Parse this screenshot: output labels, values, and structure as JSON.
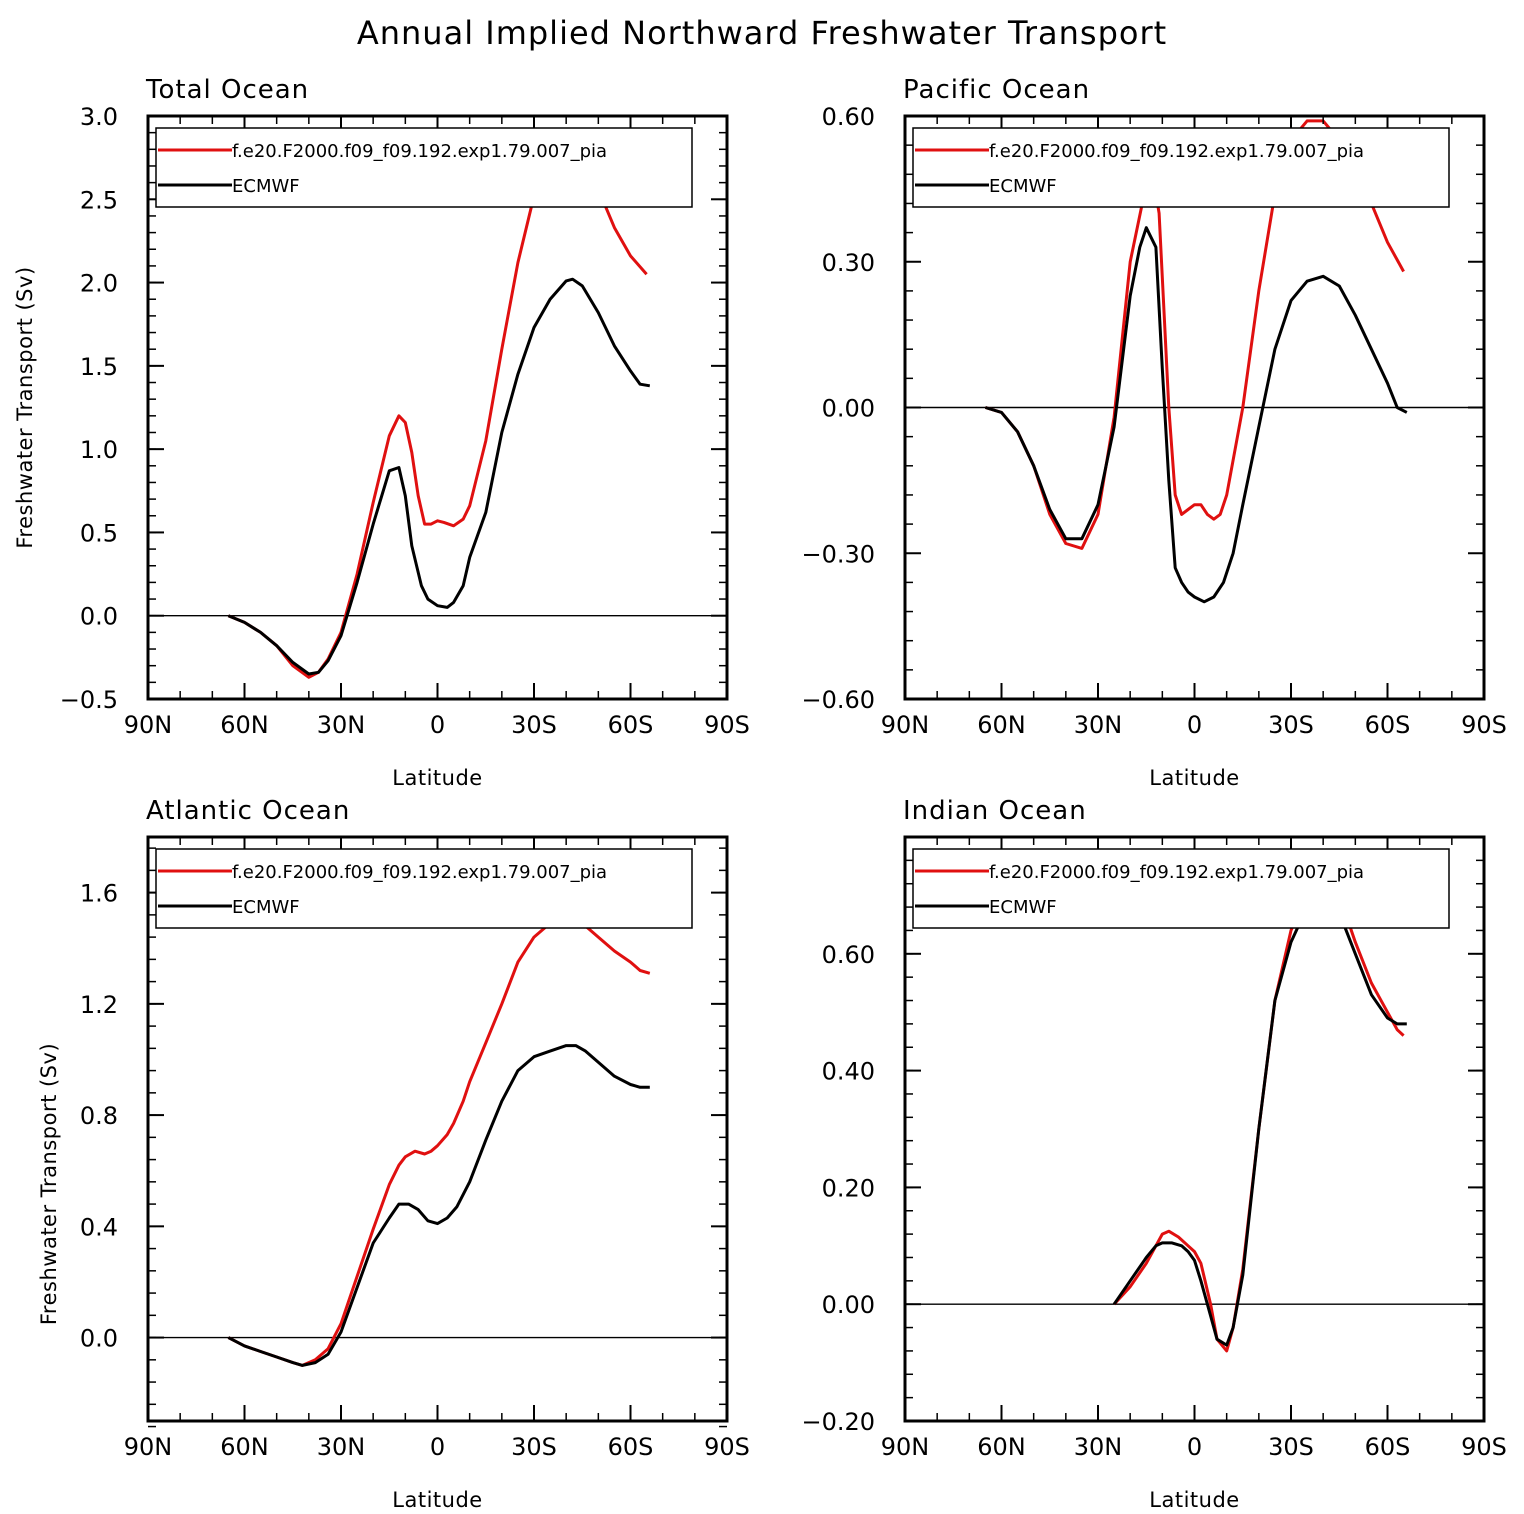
{
  "figure": {
    "title": "Annual Implied Northward Freshwater Transport"
  },
  "colors": {
    "model": "#e01010",
    "obs": "#000000"
  },
  "chart_data": [
    {
      "type": "line",
      "title": "Total Ocean",
      "xlabel": "Latitude",
      "ylabel": "Freshwater Transport (Sv)",
      "xlim": [
        90,
        -90
      ],
      "ylim": [
        -0.5,
        3.0
      ],
      "xticks": [
        90,
        60,
        30,
        0,
        -30,
        -60,
        -90
      ],
      "xtick_labels": [
        "90N",
        "60N",
        "30N",
        "0",
        "30S",
        "60S",
        "90S"
      ],
      "yticks": [
        -0.5,
        0.0,
        0.5,
        1.0,
        1.5,
        2.0,
        2.5,
        3.0
      ],
      "ytick_labels": [
        "−0.5",
        "0.0",
        "0.5",
        "1.0",
        "1.5",
        "2.0",
        "2.5",
        "3.0"
      ],
      "zero_line": true,
      "legend_position": "top",
      "series": [
        {
          "name": "f.e20.F2000.f09_f09.192.exp1.79.007_pia",
          "color": "#e01010",
          "x": [
            65,
            60,
            55,
            50,
            45,
            40,
            37,
            34,
            30,
            25,
            20,
            15,
            12,
            10,
            8,
            6,
            4,
            2,
            0,
            -2,
            -5,
            -8,
            -10,
            -15,
            -20,
            -25,
            -30,
            -35,
            -40,
            -45,
            -50,
            -55,
            -60,
            -65
          ],
          "y": [
            0.0,
            -0.04,
            -0.1,
            -0.18,
            -0.3,
            -0.37,
            -0.34,
            -0.26,
            -0.1,
            0.25,
            0.68,
            1.08,
            1.2,
            1.16,
            0.98,
            0.72,
            0.55,
            0.55,
            0.57,
            0.56,
            0.54,
            0.58,
            0.66,
            1.05,
            1.6,
            2.12,
            2.52,
            2.74,
            2.84,
            2.76,
            2.56,
            2.33,
            2.16,
            2.05
          ]
        },
        {
          "name": "ECMWF",
          "color": "#000000",
          "x": [
            65,
            60,
            55,
            50,
            45,
            40,
            37,
            34,
            30,
            25,
            20,
            15,
            12,
            10,
            8,
            5,
            3,
            0,
            -3,
            -5,
            -8,
            -10,
            -15,
            -20,
            -25,
            -30,
            -35,
            -40,
            -42,
            -45,
            -50,
            -55,
            -60,
            -63,
            -66
          ],
          "y": [
            0.0,
            -0.04,
            -0.1,
            -0.18,
            -0.28,
            -0.35,
            -0.34,
            -0.27,
            -0.12,
            0.2,
            0.55,
            0.87,
            0.89,
            0.72,
            0.42,
            0.18,
            0.1,
            0.06,
            0.05,
            0.08,
            0.18,
            0.35,
            0.62,
            1.1,
            1.45,
            1.73,
            1.9,
            2.01,
            2.02,
            1.98,
            1.82,
            1.62,
            1.47,
            1.39,
            1.38
          ]
        }
      ]
    },
    {
      "type": "line",
      "title": "Pacific Ocean",
      "xlabel": "Latitude",
      "ylabel": "",
      "xlim": [
        90,
        -90
      ],
      "ylim": [
        -0.6,
        0.6
      ],
      "xticks": [
        90,
        60,
        30,
        0,
        -30,
        -60,
        -90
      ],
      "xtick_labels": [
        "90N",
        "60N",
        "30N",
        "0",
        "30S",
        "60S",
        "90S"
      ],
      "yticks": [
        -0.6,
        -0.3,
        0.0,
        0.3,
        0.6
      ],
      "ytick_labels": [
        "−0.60",
        "−0.30",
        "0.00",
        "0.30",
        "0.60"
      ],
      "zero_line": true,
      "legend_position": "top",
      "series": [
        {
          "name": "f.e20.F2000.f09_f09.192.exp1.79.007_pia",
          "color": "#e01010",
          "x": [
            65,
            60,
            55,
            50,
            45,
            40,
            35,
            30,
            25,
            20,
            15,
            13,
            11,
            8,
            6,
            4,
            2,
            0,
            -2,
            -4,
            -6,
            -8,
            -10,
            -15,
            -20,
            -25,
            -30,
            -35,
            -40,
            -45,
            -50,
            -55,
            -60,
            -65
          ],
          "y": [
            0.0,
            -0.01,
            -0.05,
            -0.12,
            -0.22,
            -0.28,
            -0.29,
            -0.22,
            -0.02,
            0.3,
            0.46,
            0.48,
            0.4,
            0.0,
            -0.18,
            -0.22,
            -0.21,
            -0.2,
            -0.2,
            -0.22,
            -0.23,
            -0.22,
            -0.18,
            0.0,
            0.24,
            0.44,
            0.55,
            0.59,
            0.59,
            0.55,
            0.5,
            0.42,
            0.34,
            0.28
          ]
        },
        {
          "name": "ECMWF",
          "color": "#000000",
          "x": [
            65,
            60,
            55,
            50,
            45,
            40,
            35,
            30,
            25,
            20,
            17,
            15,
            12,
            10,
            8,
            6,
            4,
            2,
            0,
            -3,
            -6,
            -9,
            -12,
            -15,
            -20,
            -25,
            -30,
            -35,
            -40,
            -45,
            -50,
            -55,
            -60,
            -63,
            -66
          ],
          "y": [
            0.0,
            -0.01,
            -0.05,
            -0.12,
            -0.21,
            -0.27,
            -0.27,
            -0.2,
            -0.04,
            0.23,
            0.33,
            0.37,
            0.33,
            0.08,
            -0.15,
            -0.33,
            -0.36,
            -0.38,
            -0.39,
            -0.4,
            -0.39,
            -0.36,
            -0.3,
            -0.2,
            -0.04,
            0.12,
            0.22,
            0.26,
            0.27,
            0.25,
            0.19,
            0.12,
            0.05,
            0.0,
            -0.01
          ]
        }
      ]
    },
    {
      "type": "line",
      "title": "Atlantic Ocean",
      "xlabel": "Latitude",
      "ylabel": "Freshwater Transport (Sv)",
      "xlim": [
        90,
        -90
      ],
      "ylim": [
        -0.3,
        1.8
      ],
      "xticks": [
        90,
        60,
        30,
        0,
        -30,
        -60,
        -90
      ],
      "xtick_labels": [
        "90N",
        "60N",
        "30N",
        "0",
        "30S",
        "60S",
        "90S"
      ],
      "yticks": [
        0.0,
        0.4,
        0.8,
        1.2,
        1.6
      ],
      "ytick_labels": [
        "0.0",
        "0.4",
        "0.8",
        "1.2",
        "1.6"
      ],
      "zero_line": true,
      "legend_position": "top",
      "series": [
        {
          "name": "f.e20.F2000.f09_f09.192.exp1.79.007_pia",
          "color": "#e01010",
          "x": [
            65,
            60,
            55,
            50,
            45,
            42,
            38,
            34,
            30,
            25,
            20,
            15,
            12,
            10,
            7,
            4,
            2,
            0,
            -3,
            -5,
            -8,
            -10,
            -15,
            -20,
            -25,
            -30,
            -35,
            -40,
            -42,
            -45,
            -50,
            -55,
            -60,
            -63,
            -66
          ],
          "y": [
            0.0,
            -0.03,
            -0.05,
            -0.07,
            -0.09,
            -0.1,
            -0.08,
            -0.04,
            0.05,
            0.22,
            0.39,
            0.55,
            0.62,
            0.65,
            0.67,
            0.66,
            0.67,
            0.69,
            0.73,
            0.77,
            0.85,
            0.92,
            1.06,
            1.2,
            1.35,
            1.44,
            1.49,
            1.51,
            1.51,
            1.49,
            1.44,
            1.39,
            1.35,
            1.32,
            1.31
          ]
        },
        {
          "name": "ECMWF",
          "color": "#000000",
          "x": [
            65,
            60,
            55,
            50,
            45,
            42,
            38,
            34,
            30,
            25,
            20,
            15,
            12,
            9,
            6,
            3,
            0,
            -3,
            -6,
            -10,
            -15,
            -20,
            -25,
            -30,
            -35,
            -40,
            -43,
            -46,
            -50,
            -55,
            -60,
            -63,
            -66
          ],
          "y": [
            0.0,
            -0.03,
            -0.05,
            -0.07,
            -0.09,
            -0.1,
            -0.09,
            -0.06,
            0.02,
            0.18,
            0.34,
            0.43,
            0.48,
            0.48,
            0.46,
            0.42,
            0.41,
            0.43,
            0.47,
            0.56,
            0.71,
            0.85,
            0.96,
            1.01,
            1.03,
            1.05,
            1.05,
            1.03,
            0.99,
            0.94,
            0.91,
            0.9,
            0.9
          ]
        }
      ]
    },
    {
      "type": "line",
      "title": "Indian Ocean",
      "xlabel": "Latitude",
      "ylabel": "",
      "xlim": [
        90,
        -90
      ],
      "ylim": [
        -0.2,
        0.8
      ],
      "xticks": [
        90,
        60,
        30,
        0,
        -30,
        -60,
        -90
      ],
      "xtick_labels": [
        "90N",
        "60N",
        "30N",
        "0",
        "30S",
        "60S",
        "90S"
      ],
      "yticks": [
        -0.2,
        0.0,
        0.2,
        0.4,
        0.6
      ],
      "ytick_labels": [
        "−0.20",
        "0.00",
        "0.20",
        "0.40",
        "0.60"
      ],
      "zero_line": true,
      "legend_position": "top",
      "series": [
        {
          "name": "f.e20.F2000.f09_f09.192.exp1.79.007_pia",
          "color": "#e01010",
          "x": [
            25,
            20,
            15,
            12,
            10,
            8,
            5,
            2,
            0,
            -2,
            -5,
            -7,
            -10,
            -12,
            -15,
            -20,
            -25,
            -30,
            -35,
            -40,
            -42,
            -45,
            -50,
            -55,
            -60,
            -63,
            -65
          ],
          "y": [
            0.0,
            0.03,
            0.07,
            0.1,
            0.12,
            0.125,
            0.115,
            0.1,
            0.09,
            0.07,
            0.0,
            -0.06,
            -0.08,
            -0.04,
            0.06,
            0.3,
            0.52,
            0.64,
            0.7,
            0.72,
            0.72,
            0.7,
            0.62,
            0.55,
            0.5,
            0.47,
            0.46
          ]
        },
        {
          "name": "ECMWF",
          "color": "#000000",
          "x": [
            25,
            20,
            15,
            12,
            10,
            7,
            4,
            2,
            0,
            -2,
            -5,
            -7,
            -10,
            -12,
            -15,
            -20,
            -25,
            -30,
            -35,
            -40,
            -42,
            -45,
            -50,
            -55,
            -60,
            -63,
            -66
          ],
          "y": [
            0.0,
            0.04,
            0.08,
            0.1,
            0.105,
            0.105,
            0.1,
            0.09,
            0.075,
            0.04,
            -0.02,
            -0.06,
            -0.07,
            -0.04,
            0.05,
            0.3,
            0.52,
            0.62,
            0.68,
            0.7,
            0.7,
            0.67,
            0.6,
            0.53,
            0.49,
            0.48,
            0.48
          ]
        }
      ]
    }
  ]
}
